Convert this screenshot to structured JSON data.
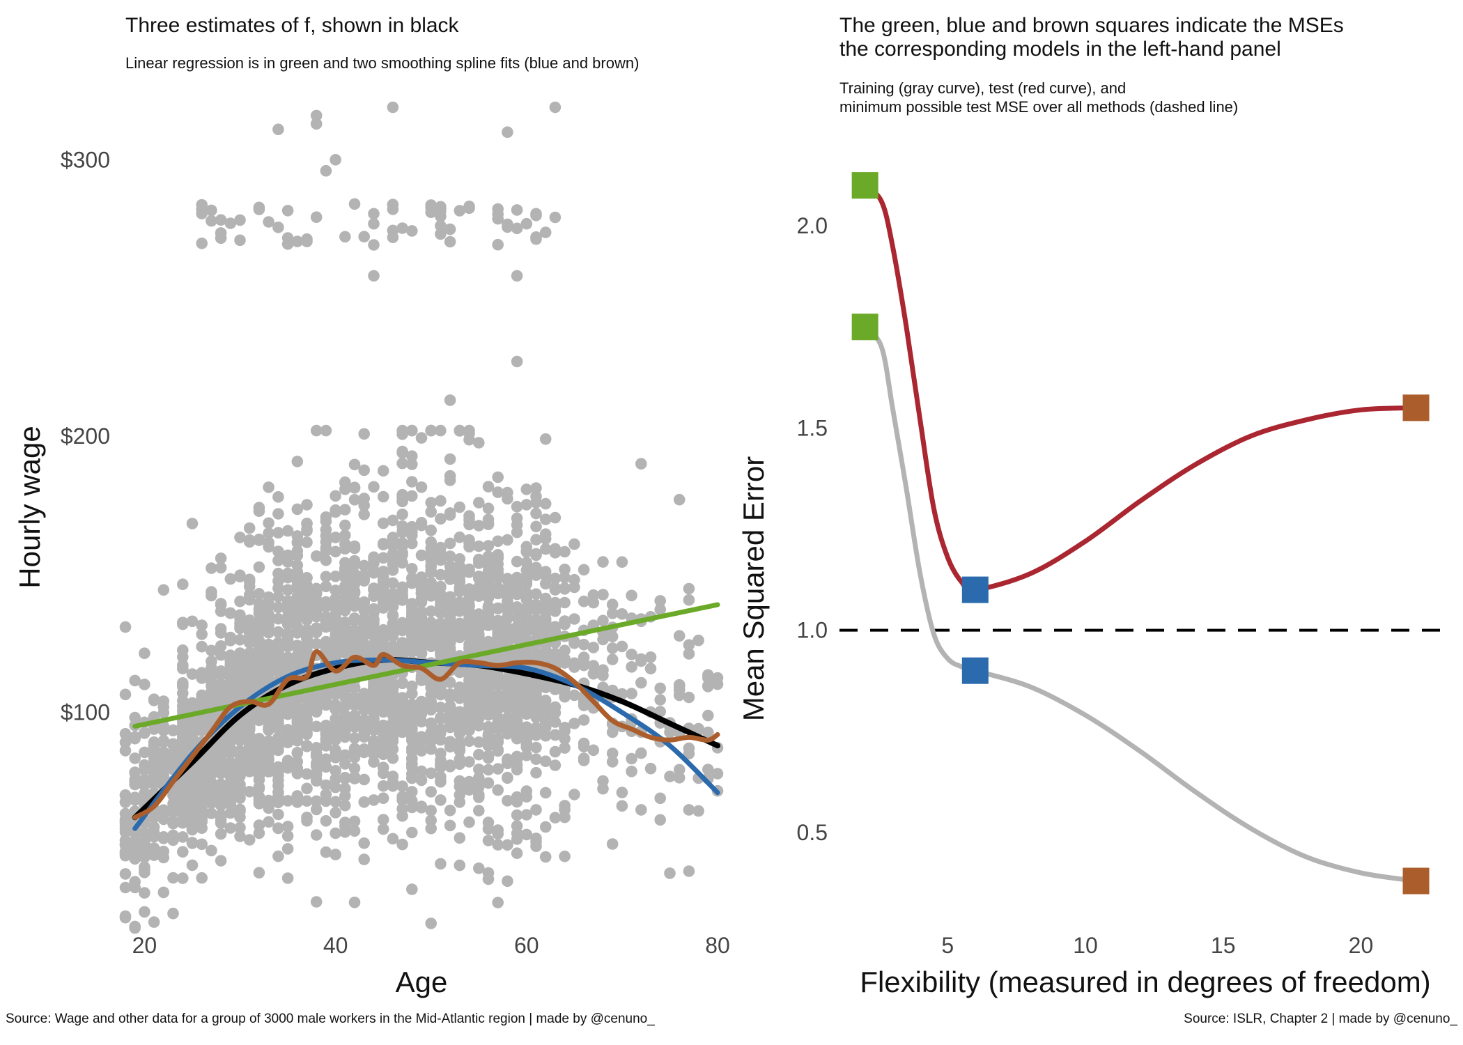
{
  "colors": {
    "point": "#b3b3b3",
    "truth": "#000000",
    "linear": "#6aaa28",
    "spline_smooth": "#2a6aad",
    "spline_rough": "#ab5e2c",
    "train": "#b3b3b3",
    "test": "#aa2630",
    "dashed": "#000000",
    "text": "#111111",
    "tick": "#444444"
  },
  "captions": {
    "left": "Source: Wage and other data for a group of 3000 male workers in the Mid-Atlantic region | made by @cenuno_",
    "right": "Source: ISLR, Chapter 2 | made by @cenuno_"
  },
  "chart_data": [
    {
      "type": "scatter",
      "title": "Three estimates of f, shown in black",
      "subtitle": "Linear regression is in green and two smoothing spline fits (blue and brown)",
      "xlabel": "Age",
      "ylabel": "Hourly wage",
      "xlim": [
        18,
        80
      ],
      "ylim": [
        20,
        320
      ],
      "x_ticks": [
        20,
        40,
        60,
        80
      ],
      "x_tick_labels": [
        "20",
        "40",
        "60",
        "80"
      ],
      "y_ticks": [
        100,
        200,
        300
      ],
      "y_tick_labels": [
        "$100",
        "$200",
        "$300"
      ],
      "grid": false,
      "legend": "none",
      "points_note": "random sample approximating the scatter of 3000 workers",
      "scatter_point_count": 3000,
      "outliers": [
        [
          34,
          311
        ],
        [
          38,
          316
        ],
        [
          38,
          313
        ],
        [
          40,
          300
        ],
        [
          39,
          296
        ],
        [
          46,
          319
        ],
        [
          63,
          319
        ],
        [
          58,
          310
        ],
        [
          42,
          284
        ],
        [
          59,
          227
        ],
        [
          52,
          213
        ],
        [
          72,
          190
        ],
        [
          76,
          177
        ],
        [
          59,
          258
        ],
        [
          44,
          258
        ]
      ],
      "series": [
        {
          "name": "truth",
          "style": "black",
          "x": [
            19,
            25,
            30,
            35,
            40,
            45,
            50,
            55,
            60,
            65,
            70,
            75,
            80
          ],
          "y": [
            62,
            82,
            99,
            110,
            116,
            119,
            118,
            117,
            114,
            110,
            104,
            96,
            88
          ]
        },
        {
          "name": "linear",
          "style": "green",
          "x": [
            19,
            80
          ],
          "y": [
            95,
            139
          ]
        },
        {
          "name": "smooth spline",
          "style": "blue",
          "x": [
            19,
            25,
            30,
            35,
            40,
            45,
            50,
            55,
            60,
            65,
            70,
            75,
            80
          ],
          "y": [
            58,
            85,
            102,
            113,
            118,
            119,
            118,
            117,
            116,
            110,
            100,
            88,
            71
          ]
        },
        {
          "name": "rough spline",
          "style": "brown",
          "x": [
            19,
            21,
            23,
            25,
            27,
            29,
            31,
            33,
            35,
            37,
            38,
            40,
            42,
            44,
            45,
            47,
            49,
            51,
            53,
            55,
            57,
            59,
            61,
            63,
            65,
            67,
            69,
            71,
            73,
            75,
            77,
            79,
            80
          ],
          "y": [
            62,
            66,
            75,
            84,
            93,
            102,
            104,
            103,
            112,
            113,
            122,
            115,
            120,
            117,
            121,
            117,
            116,
            112,
            118,
            118,
            117,
            118,
            118,
            116,
            111,
            104,
            97,
            94,
            91,
            90,
            91,
            90,
            92
          ]
        }
      ]
    },
    {
      "type": "line",
      "title": "The green, blue and brown squares indicate the MSEs\nthe corresponding models in the left-hand panel",
      "subtitle": "Training (gray curve), test (red curve), and\nminimum possible test MSE over all methods (dashed line)",
      "xlabel": "Flexibility (measured in degrees of freedom)",
      "ylabel": "Mean Squared Error",
      "xlim": [
        1.2,
        23.2
      ],
      "ylim": [
        0.25,
        2.3
      ],
      "x_ticks": [
        5,
        10,
        15,
        20
      ],
      "x_tick_labels": [
        "5",
        "10",
        "15",
        "20"
      ],
      "y_ticks": [
        0.5,
        1.0,
        1.5,
        2.0
      ],
      "y_tick_labels": [
        "0.5",
        "1.0",
        "1.5",
        "2.0"
      ],
      "grid": false,
      "legend": "none",
      "hline": 1.0,
      "series": [
        {
          "name": "test",
          "style": "red",
          "x": [
            2,
            2.6,
            3,
            3.5,
            4,
            4.5,
            5,
            5.5,
            6,
            8,
            10,
            12,
            14,
            16,
            18,
            20,
            22
          ],
          "y": [
            2.1,
            2.06,
            1.95,
            1.75,
            1.52,
            1.3,
            1.18,
            1.12,
            1.1,
            1.14,
            1.22,
            1.32,
            1.41,
            1.48,
            1.52,
            1.545,
            1.55
          ]
        },
        {
          "name": "train",
          "style": "gray",
          "x": [
            2,
            2.6,
            3,
            3.5,
            4,
            4.5,
            5,
            5.5,
            6,
            8,
            10,
            12,
            14,
            16,
            18,
            20,
            22
          ],
          "y": [
            1.75,
            1.7,
            1.55,
            1.35,
            1.14,
            0.99,
            0.93,
            0.91,
            0.9,
            0.86,
            0.79,
            0.7,
            0.6,
            0.51,
            0.44,
            0.4,
            0.38
          ]
        }
      ],
      "squares": [
        {
          "model": "linear",
          "style": "green",
          "x": 2,
          "y": 2.1
        },
        {
          "model": "linear",
          "style": "green",
          "x": 2,
          "y": 1.75
        },
        {
          "model": "smooth spline",
          "style": "blue",
          "x": 6,
          "y": 1.1
        },
        {
          "model": "smooth spline",
          "style": "blue",
          "x": 6,
          "y": 0.9
        },
        {
          "model": "rough spline",
          "style": "brown",
          "x": 22,
          "y": 1.55
        },
        {
          "model": "rough spline",
          "style": "brown",
          "x": 22,
          "y": 0.38
        }
      ]
    }
  ]
}
